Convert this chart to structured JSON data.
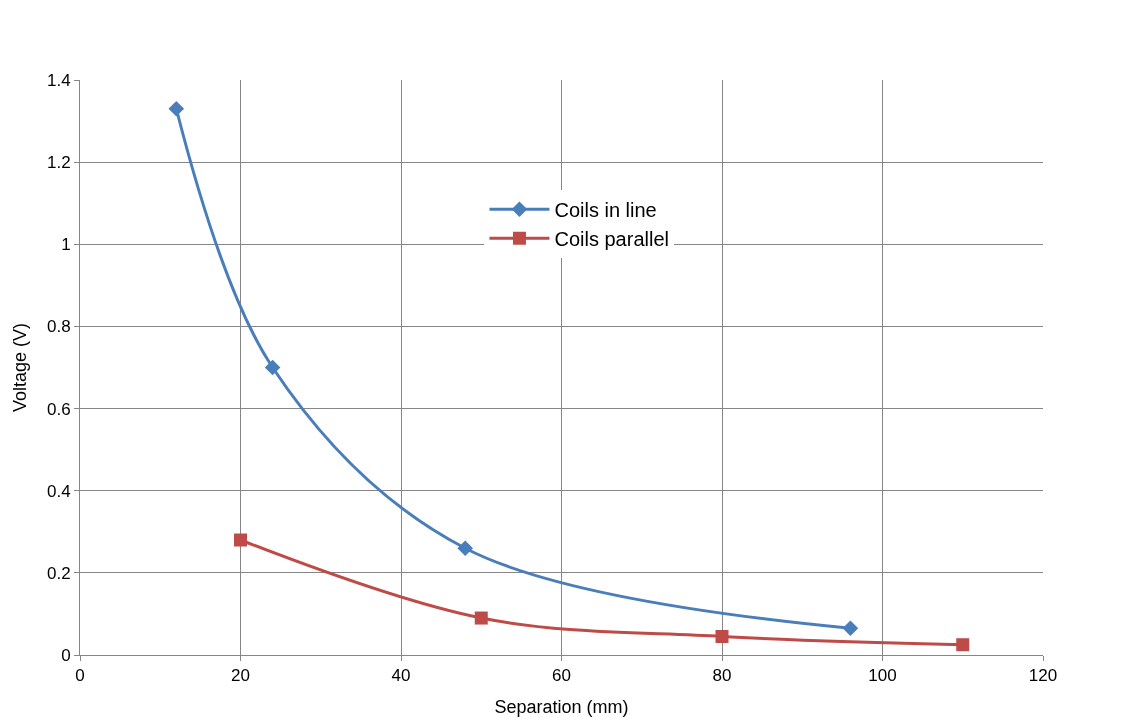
{
  "chart_data": {
    "type": "line",
    "xlabel": "Separation (mm)",
    "ylabel": "Voltage (V)",
    "series": [
      {
        "name": "Coils in line",
        "color": "#4a7ebb",
        "x": [
          12,
          24,
          48,
          96
        ],
        "values": [
          1.33,
          0.7,
          0.26,
          0.065
        ],
        "marker": "diamond"
      },
      {
        "name": "Coils parallel",
        "color": "#be4b48",
        "x": [
          20,
          50,
          80,
          110
        ],
        "values": [
          0.28,
          0.09,
          0.045,
          0.025
        ],
        "marker": "square"
      }
    ],
    "xlim": [
      0,
      120
    ],
    "xticks": [
      0,
      20,
      40,
      60,
      80,
      100,
      120
    ],
    "ylim": [
      0,
      1.4
    ],
    "yticks": [
      0,
      0.2,
      0.4,
      0.6,
      0.8,
      1,
      1.2,
      1.4
    ],
    "grid": true,
    "legend": "center",
    "line_style": "solid"
  }
}
